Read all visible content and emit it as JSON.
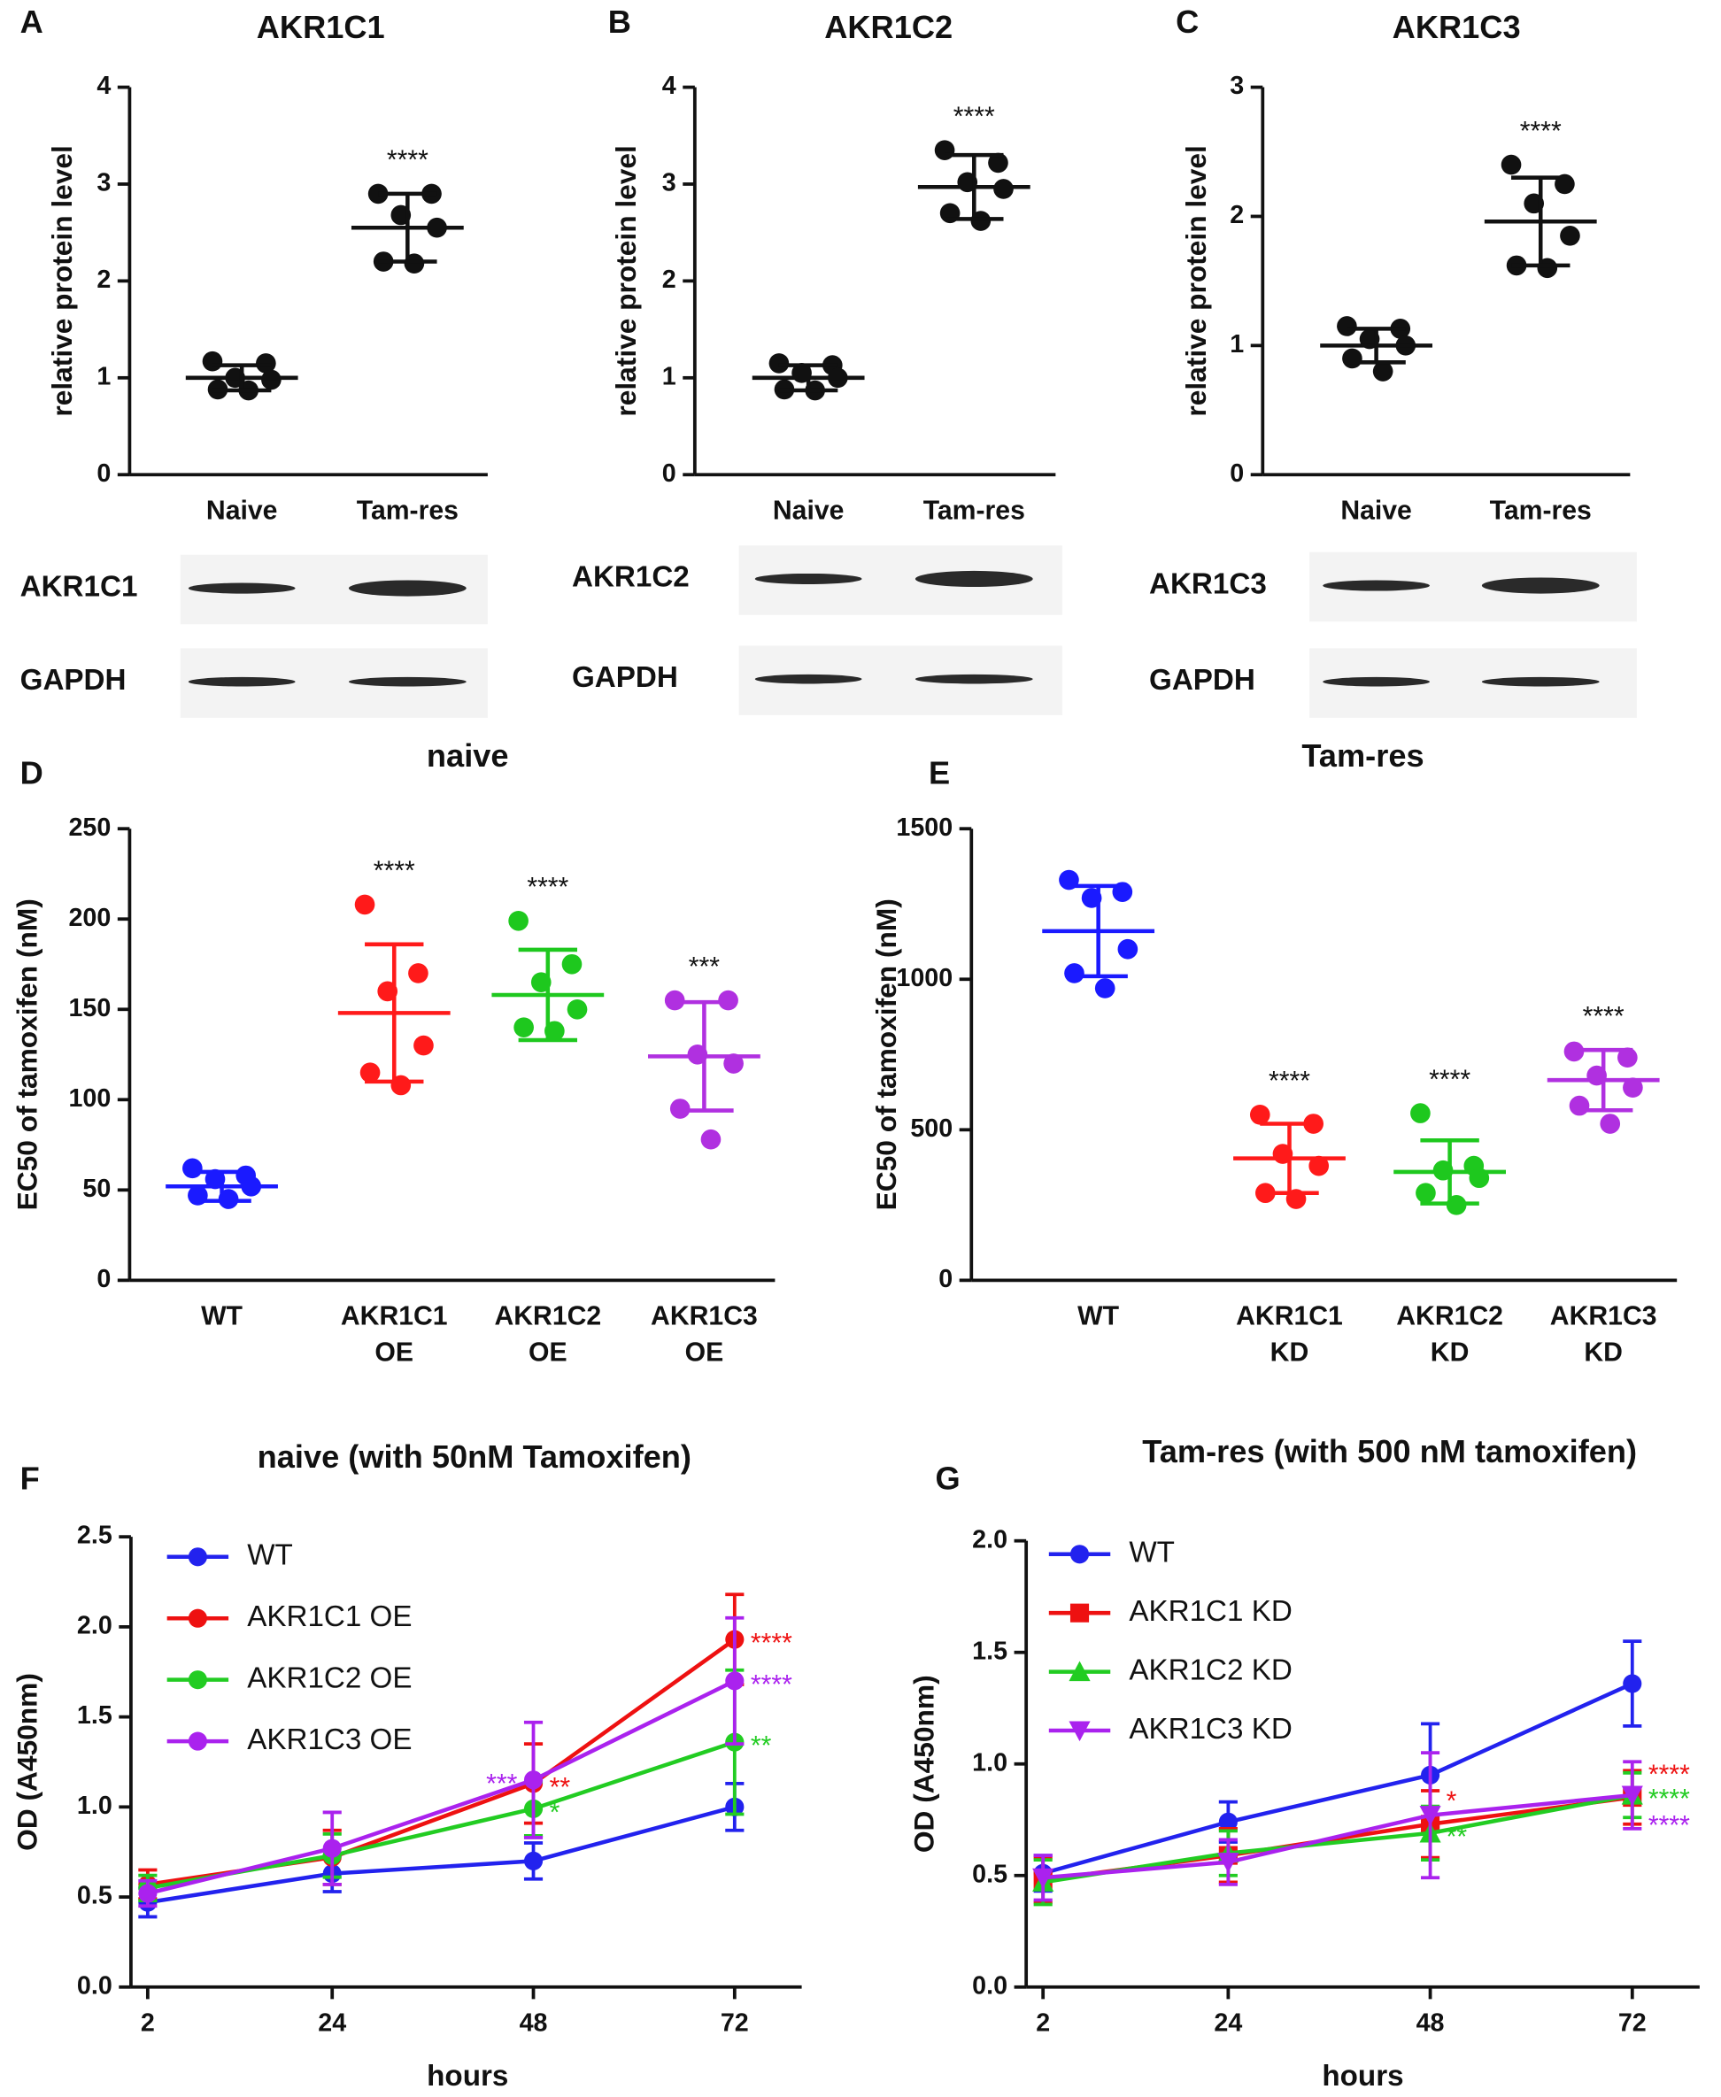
{
  "chart_data": [
    {
      "type": "dotplot",
      "panel": "A",
      "title": "AKR1C1",
      "ylabel": "relative protein level",
      "categories": [
        [
          "Naive"
        ],
        [
          "Tam-res"
        ]
      ],
      "points": [
        [
          1.17,
          1.15,
          1.0,
          0.98,
          0.88,
          0.87
        ],
        [
          2.9,
          2.9,
          2.68,
          2.55,
          2.2,
          2.18
        ]
      ],
      "mean": [
        1.0,
        2.55
      ],
      "sd": [
        0.13,
        0.35
      ],
      "annotations": [
        null,
        "****"
      ],
      "color": "#111111",
      "ylim": [
        0,
        4
      ],
      "yticks": [
        0,
        1,
        2,
        3,
        4
      ],
      "blots": [
        "AKR1C1",
        "GAPDH"
      ]
    },
    {
      "type": "dotplot",
      "panel": "B",
      "title": "AKR1C2",
      "ylabel": "relative protein level",
      "categories": [
        [
          "Naive"
        ],
        [
          "Tam-res"
        ]
      ],
      "points": [
        [
          1.15,
          1.13,
          1.05,
          1.0,
          0.88,
          0.87
        ],
        [
          3.35,
          3.22,
          3.02,
          2.95,
          2.7,
          2.62
        ]
      ],
      "mean": [
        1.0,
        2.97
      ],
      "sd": [
        0.13,
        0.33
      ],
      "annotations": [
        null,
        "****"
      ],
      "color": "#111111",
      "ylim": [
        0,
        4
      ],
      "yticks": [
        0,
        1,
        2,
        3,
        4
      ],
      "blots": [
        "AKR1C2",
        "GAPDH"
      ]
    },
    {
      "type": "dotplot",
      "panel": "C",
      "title": "AKR1C3",
      "ylabel": "relative protein level",
      "categories": [
        [
          "Naive"
        ],
        [
          "Tam-res"
        ]
      ],
      "points": [
        [
          1.15,
          1.13,
          1.05,
          1.0,
          0.9,
          0.8
        ],
        [
          2.4,
          2.25,
          2.1,
          1.85,
          1.62,
          1.6
        ]
      ],
      "mean": [
        1.0,
        1.96
      ],
      "sd": [
        0.13,
        0.34
      ],
      "annotations": [
        null,
        "****"
      ],
      "color": "#111111",
      "ylim": [
        0,
        3
      ],
      "yticks": [
        0,
        1,
        2,
        3
      ],
      "blots": [
        "AKR1C3",
        "GAPDH"
      ]
    },
    {
      "type": "dotplot",
      "panel": "D",
      "title": "naive",
      "ylabel": "EC50 of tamoxifen (nM)",
      "categories": [
        [
          "WT"
        ],
        [
          "AKR1C1",
          "OE"
        ],
        [
          "AKR1C2",
          "OE"
        ],
        [
          "AKR1C3",
          "OE"
        ]
      ],
      "points": [
        [
          62,
          58,
          56,
          52,
          47,
          45
        ],
        [
          208,
          170,
          160,
          130,
          115,
          108
        ],
        [
          199,
          175,
          165,
          150,
          140,
          138
        ],
        [
          155,
          155,
          125,
          120,
          95,
          78
        ]
      ],
      "mean": [
        52,
        148,
        158,
        124
      ],
      "sd": [
        8,
        38,
        25,
        30
      ],
      "annotations": [
        null,
        "****",
        "****",
        "***"
      ],
      "colors": [
        "#1a1aff",
        "#ff1a1a",
        "#1ec81e",
        "#b030e0"
      ],
      "ylim": [
        0,
        250
      ],
      "yticks": [
        0,
        50,
        100,
        150,
        200,
        250
      ]
    },
    {
      "type": "dotplot",
      "panel": "E",
      "title": "Tam-res",
      "ylabel": "EC50 of tamoxifen (nM)",
      "categories": [
        [
          "WT"
        ],
        [
          "AKR1C1",
          "KD"
        ],
        [
          "AKR1C2",
          "KD"
        ],
        [
          "AKR1C3",
          "KD"
        ]
      ],
      "points": [
        [
          1330,
          1290,
          1270,
          1100,
          1020,
          970
        ],
        [
          550,
          520,
          420,
          380,
          290,
          270
        ],
        [
          555,
          380,
          365,
          340,
          290,
          250
        ],
        [
          760,
          740,
          680,
          640,
          580,
          520
        ]
      ],
      "mean": [
        1160,
        405,
        360,
        665
      ],
      "sd": [
        150,
        115,
        105,
        100
      ],
      "annotations": [
        null,
        "****",
        "****",
        "****"
      ],
      "colors": [
        "#1a1aff",
        "#ff1a1a",
        "#1ec81e",
        "#b030e0"
      ],
      "ylim": [
        0,
        1500
      ],
      "yticks": [
        0,
        500,
        1000,
        1500
      ]
    },
    {
      "type": "line",
      "panel": "F",
      "title": "naive (with 50nM Tamoxifen)",
      "xlabel": "hours",
      "ylabel": "OD (A450nm)",
      "x": [
        2,
        24,
        48,
        72
      ],
      "xlim": [
        0,
        80
      ],
      "xticks": [
        2,
        24,
        48,
        72
      ],
      "ylim": [
        0,
        2.5
      ],
      "yticks": [
        {
          "value": 0,
          "label": "0.0"
        },
        0.5,
        {
          "value": 1,
          "label": "1.0"
        },
        1.5,
        {
          "value": 2,
          "label": "2.0"
        },
        2.5
      ],
      "legend": "upper left",
      "series": [
        {
          "name": "WT",
          "color": "#2222ee",
          "marker": "circle",
          "values": [
            0.47,
            0.63,
            0.7,
            1.0
          ],
          "errors": [
            0.08,
            0.1,
            0.1,
            0.13
          ],
          "annotations": [
            null,
            null,
            null,
            null
          ]
        },
        {
          "name": "AKR1C1 OE",
          "color": "#ee1111",
          "marker": "circle",
          "values": [
            0.57,
            0.72,
            1.13,
            1.93
          ],
          "errors": [
            0.08,
            0.15,
            0.22,
            0.25
          ],
          "annotations": [
            null,
            null,
            "**",
            "****"
          ]
        },
        {
          "name": "AKR1C2 OE",
          "color": "#22cc22",
          "marker": "circle",
          "values": [
            0.55,
            0.73,
            0.99,
            1.36
          ],
          "errors": [
            0.07,
            0.12,
            0.15,
            0.4
          ],
          "annotations": [
            null,
            null,
            "*",
            "**"
          ]
        },
        {
          "name": "AKR1C3 OE",
          "color": "#aa22ee",
          "marker": "circle",
          "values": [
            0.52,
            0.77,
            1.15,
            1.7
          ],
          "errors": [
            0.07,
            0.2,
            0.32,
            0.35
          ],
          "annotations": [
            null,
            null,
            "***",
            "****"
          ]
        }
      ]
    },
    {
      "type": "line",
      "panel": "G",
      "title": "Tam-res (with 500 nM tamoxifen)",
      "xlabel": "hours",
      "ylabel": "OD (A450nm)",
      "x": [
        2,
        24,
        48,
        72
      ],
      "xlim": [
        0,
        80
      ],
      "xticks": [
        2,
        24,
        48,
        72
      ],
      "ylim": [
        0,
        2
      ],
      "yticks": [
        {
          "value": 0,
          "label": "0.0"
        },
        0.5,
        {
          "value": 1,
          "label": "1.0"
        },
        1.5,
        {
          "value": 2,
          "label": "2.0"
        }
      ],
      "legend": "upper left",
      "series": [
        {
          "name": "WT",
          "color": "#2222ee",
          "marker": "circle",
          "values": [
            0.51,
            0.74,
            0.95,
            1.36
          ],
          "errors": [
            0.08,
            0.09,
            0.23,
            0.19
          ],
          "annotations": [
            null,
            null,
            null,
            null
          ]
        },
        {
          "name": "AKR1C1 KD",
          "color": "#ee1111",
          "marker": "square",
          "values": [
            0.48,
            0.59,
            0.73,
            0.85
          ],
          "errors": [
            0.1,
            0.12,
            0.15,
            0.12
          ],
          "annotations": [
            null,
            null,
            "*",
            "****"
          ]
        },
        {
          "name": "AKR1C2 KD",
          "color": "#22cc22",
          "marker": "triangle",
          "values": [
            0.47,
            0.6,
            0.69,
            0.86
          ],
          "errors": [
            0.1,
            0.1,
            0.12,
            0.1
          ],
          "annotations": [
            null,
            null,
            "**",
            "****"
          ]
        },
        {
          "name": "AKR1C3 KD",
          "color": "#aa22ee",
          "marker": "triangle-down",
          "values": [
            0.49,
            0.56,
            0.77,
            0.86
          ],
          "errors": [
            0.1,
            0.1,
            0.28,
            0.15
          ],
          "annotations": [
            null,
            null,
            null,
            "****"
          ]
        }
      ]
    }
  ]
}
